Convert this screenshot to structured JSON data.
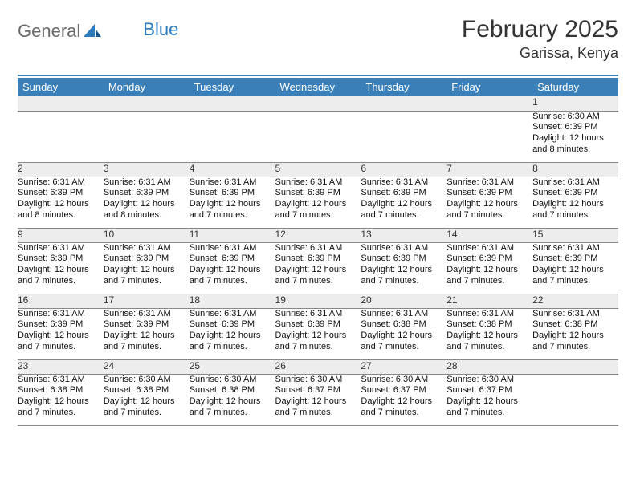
{
  "brand": {
    "word1": "General",
    "word2": "Blue"
  },
  "title": "February 2025",
  "location": "Garissa, Kenya",
  "colors": {
    "header_bg": "#3b7fb8",
    "header_text": "#ffffff",
    "daynum_bg": "#ededed",
    "rule": "#3b7fb8",
    "row_border": "#888888",
    "logo_gray": "#6b6b6b",
    "logo_blue": "#2b7bbf"
  },
  "day_labels": [
    "Sunday",
    "Monday",
    "Tuesday",
    "Wednesday",
    "Thursday",
    "Friday",
    "Saturday"
  ],
  "weeks": [
    {
      "nums": [
        "",
        "",
        "",
        "",
        "",
        "",
        "1"
      ],
      "cells": [
        "",
        "",
        "",
        "",
        "",
        "",
        "Sunrise: 6:30 AM\nSunset: 6:39 PM\nDaylight: 12 hours and 8 minutes."
      ]
    },
    {
      "nums": [
        "2",
        "3",
        "4",
        "5",
        "6",
        "7",
        "8"
      ],
      "cells": [
        "Sunrise: 6:31 AM\nSunset: 6:39 PM\nDaylight: 12 hours and 8 minutes.",
        "Sunrise: 6:31 AM\nSunset: 6:39 PM\nDaylight: 12 hours and 8 minutes.",
        "Sunrise: 6:31 AM\nSunset: 6:39 PM\nDaylight: 12 hours and 7 minutes.",
        "Sunrise: 6:31 AM\nSunset: 6:39 PM\nDaylight: 12 hours and 7 minutes.",
        "Sunrise: 6:31 AM\nSunset: 6:39 PM\nDaylight: 12 hours and 7 minutes.",
        "Sunrise: 6:31 AM\nSunset: 6:39 PM\nDaylight: 12 hours and 7 minutes.",
        "Sunrise: 6:31 AM\nSunset: 6:39 PM\nDaylight: 12 hours and 7 minutes."
      ]
    },
    {
      "nums": [
        "9",
        "10",
        "11",
        "12",
        "13",
        "14",
        "15"
      ],
      "cells": [
        "Sunrise: 6:31 AM\nSunset: 6:39 PM\nDaylight: 12 hours and 7 minutes.",
        "Sunrise: 6:31 AM\nSunset: 6:39 PM\nDaylight: 12 hours and 7 minutes.",
        "Sunrise: 6:31 AM\nSunset: 6:39 PM\nDaylight: 12 hours and 7 minutes.",
        "Sunrise: 6:31 AM\nSunset: 6:39 PM\nDaylight: 12 hours and 7 minutes.",
        "Sunrise: 6:31 AM\nSunset: 6:39 PM\nDaylight: 12 hours and 7 minutes.",
        "Sunrise: 6:31 AM\nSunset: 6:39 PM\nDaylight: 12 hours and 7 minutes.",
        "Sunrise: 6:31 AM\nSunset: 6:39 PM\nDaylight: 12 hours and 7 minutes."
      ]
    },
    {
      "nums": [
        "16",
        "17",
        "18",
        "19",
        "20",
        "21",
        "22"
      ],
      "cells": [
        "Sunrise: 6:31 AM\nSunset: 6:39 PM\nDaylight: 12 hours and 7 minutes.",
        "Sunrise: 6:31 AM\nSunset: 6:39 PM\nDaylight: 12 hours and 7 minutes.",
        "Sunrise: 6:31 AM\nSunset: 6:39 PM\nDaylight: 12 hours and 7 minutes.",
        "Sunrise: 6:31 AM\nSunset: 6:39 PM\nDaylight: 12 hours and 7 minutes.",
        "Sunrise: 6:31 AM\nSunset: 6:38 PM\nDaylight: 12 hours and 7 minutes.",
        "Sunrise: 6:31 AM\nSunset: 6:38 PM\nDaylight: 12 hours and 7 minutes.",
        "Sunrise: 6:31 AM\nSunset: 6:38 PM\nDaylight: 12 hours and 7 minutes."
      ]
    },
    {
      "nums": [
        "23",
        "24",
        "25",
        "26",
        "27",
        "28",
        ""
      ],
      "cells": [
        "Sunrise: 6:31 AM\nSunset: 6:38 PM\nDaylight: 12 hours and 7 minutes.",
        "Sunrise: 6:30 AM\nSunset: 6:38 PM\nDaylight: 12 hours and 7 minutes.",
        "Sunrise: 6:30 AM\nSunset: 6:38 PM\nDaylight: 12 hours and 7 minutes.",
        "Sunrise: 6:30 AM\nSunset: 6:37 PM\nDaylight: 12 hours and 7 minutes.",
        "Sunrise: 6:30 AM\nSunset: 6:37 PM\nDaylight: 12 hours and 7 minutes.",
        "Sunrise: 6:30 AM\nSunset: 6:37 PM\nDaylight: 12 hours and 7 minutes.",
        ""
      ]
    }
  ]
}
